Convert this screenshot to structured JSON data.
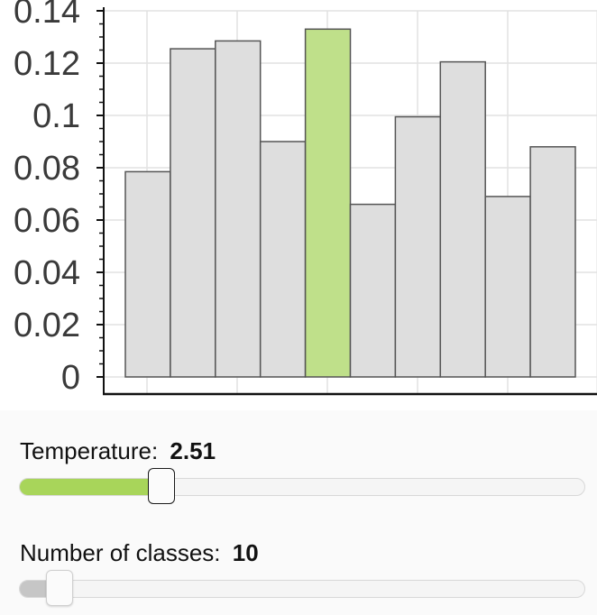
{
  "chart_data": {
    "type": "bar",
    "values": [
      0.0785,
      0.1255,
      0.1285,
      0.09,
      0.133,
      0.066,
      0.0995,
      0.1205,
      0.069,
      0.088
    ],
    "highlight_index": 4,
    "ylim": [
      0,
      0.14
    ],
    "yticks": [
      0,
      0.02,
      0.04,
      0.06,
      0.08,
      0.1,
      0.12,
      0.14
    ],
    "ytick_labels": [
      "0",
      "0.02",
      "0.04",
      "0.06",
      "0.08",
      "0.1",
      "0.12",
      "0.14"
    ],
    "grid": true,
    "colors": {
      "bar": "#dedede",
      "highlight": "#bfe08a",
      "bar_stroke": "#555555",
      "highlight_stroke": "#555555",
      "grid": "#e2e2e2",
      "axis": "#111111"
    }
  },
  "controls": {
    "temperature": {
      "label": "Temperature:",
      "value": "2.51",
      "fraction": 0.25,
      "fill_color": "#a8d55a"
    },
    "classes": {
      "label": "Number of classes:",
      "value": "10",
      "fraction": 0.07,
      "fill_color": "#c6c6c6"
    }
  }
}
